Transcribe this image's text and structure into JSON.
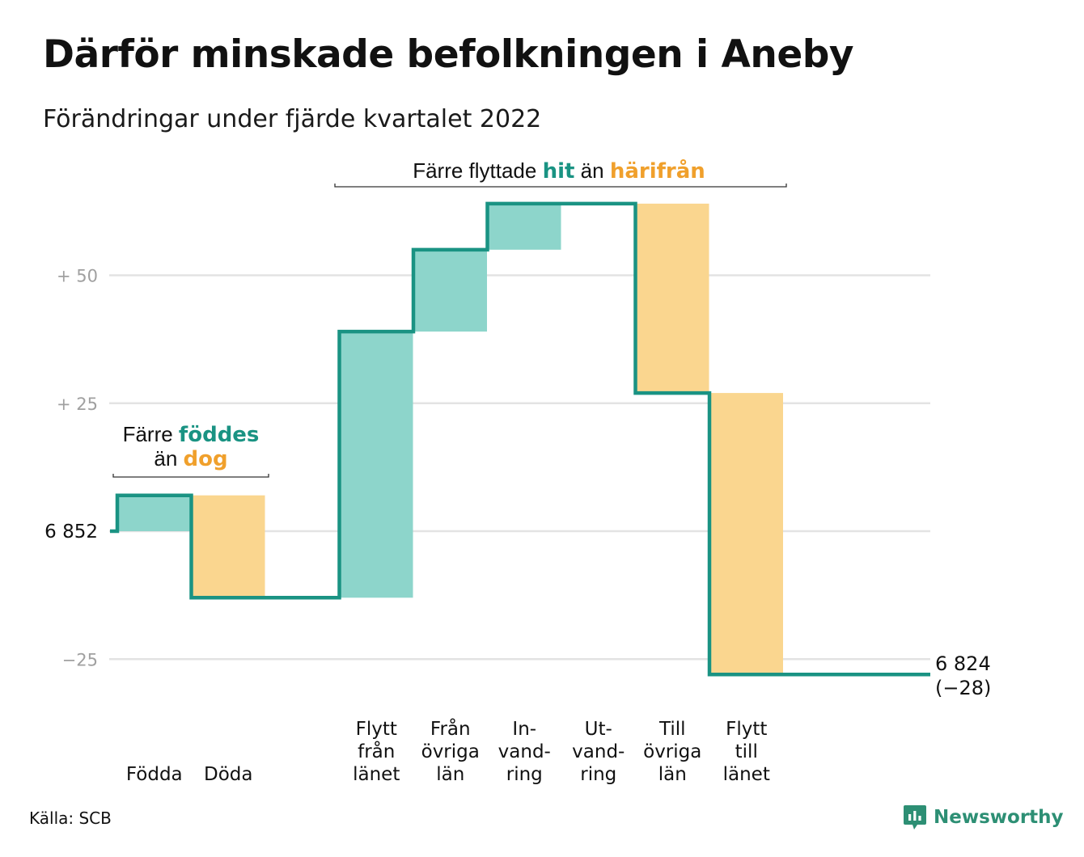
{
  "title": "Därför minskade befolkningen i Aneby",
  "subtitle": "Förändringar under fjärde kvartalet 2022",
  "source": "Källa: SCB",
  "brand": "Newsworthy",
  "colors": {
    "inflow": "#8dd5cb",
    "outflow": "#fad68f",
    "line": "#1a9383",
    "grid": "#e3e3e3",
    "tick": "#a0a0a0",
    "hit": "#1a9383",
    "dog": "#f0a02c"
  },
  "annotations": {
    "births": {
      "line1_a": "Färre ",
      "line1_b": "föddes",
      "line2_a": "än ",
      "line2_b": "dog"
    },
    "moves": {
      "a": "Färre flyttade ",
      "b": "hit",
      "c": " än ",
      "d": "härifrån"
    }
  },
  "chart_data": {
    "type": "waterfall",
    "y_axis": {
      "baseline": 6852,
      "ticks": [
        {
          "value": 50,
          "label": "+ 50"
        },
        {
          "value": 25,
          "label": "+ 25"
        },
        {
          "value": 0,
          "label": "6 852"
        },
        {
          "value": -25,
          "label": "−25"
        }
      ],
      "ylim": [
        -28,
        65
      ]
    },
    "steps": [
      {
        "label": [
          "Födda"
        ],
        "change": 7,
        "kind": "in"
      },
      {
        "label": [
          "Döda"
        ],
        "change": -20,
        "kind": "out"
      },
      {
        "label": [
          ""
        ],
        "change": 0,
        "kind": "none"
      },
      {
        "label": [
          "Flytt",
          "från",
          "länet"
        ],
        "change": 52,
        "kind": "in"
      },
      {
        "label": [
          "Från",
          "övriga",
          "län"
        ],
        "change": 16,
        "kind": "in"
      },
      {
        "label": [
          "In-",
          "vand-",
          "ring"
        ],
        "change": 9,
        "kind": "in"
      },
      {
        "label": [
          "Ut-",
          "vand-",
          "ring"
        ],
        "change": 0,
        "kind": "out"
      },
      {
        "label": [
          "Till",
          "övriga",
          "län"
        ],
        "change": -37,
        "kind": "out"
      },
      {
        "label": [
          "Flytt",
          "till",
          "länet"
        ],
        "change": -55,
        "kind": "out"
      }
    ],
    "end": {
      "value": "6 824",
      "change": "(−28)",
      "delta": -28
    }
  }
}
